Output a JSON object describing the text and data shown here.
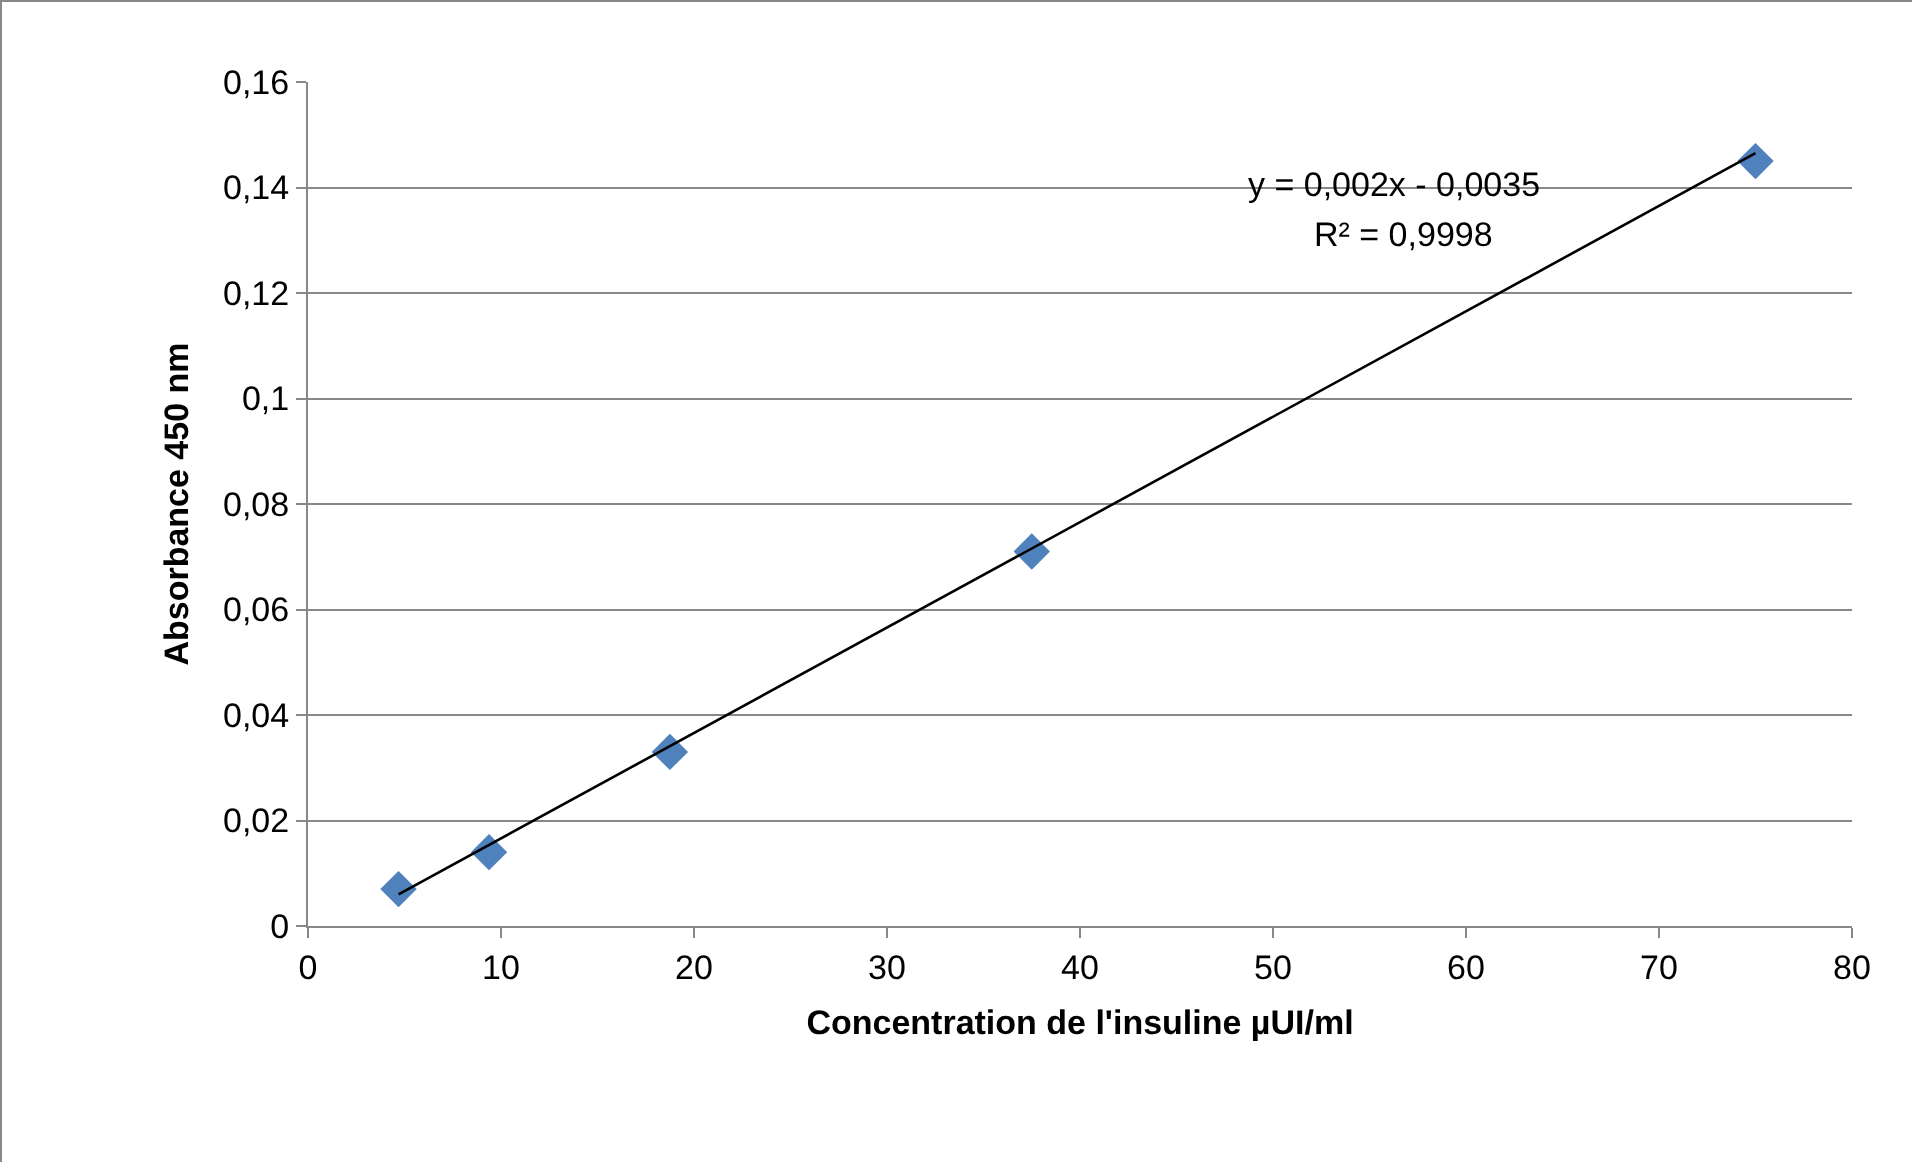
{
  "chart_data": {
    "type": "scatter",
    "xlabel": "Concentration de l'insuline µUI/ml",
    "ylabel": "Absorbance 450 nm",
    "series": [
      {
        "color": "#4f81bd",
        "marker": "diamond",
        "x": [
          4.69,
          9.38,
          18.75,
          37.5,
          75
        ],
        "values": [
          0.007,
          0.014,
          0.033,
          0.071,
          0.145
        ]
      },
      {
        "type": "line",
        "color": "#000000",
        "marker": "none",
        "x": [
          4.69,
          75
        ],
        "values": [
          0.006,
          0.1465
        ]
      }
    ],
    "annotations": [
      "y = 0,002x - 0,0035",
      "R² = 0,9998"
    ],
    "xlim": [
      0,
      80
    ],
    "xticks": [
      0,
      10,
      20,
      30,
      40,
      50,
      60,
      70,
      80
    ],
    "ylim": [
      0,
      0.16
    ],
    "yticks": [
      0,
      {
        "value": 0.02,
        "label": "0,02"
      },
      {
        "value": 0.04,
        "label": "0,04"
      },
      {
        "value": 0.06,
        "label": "0,06"
      },
      {
        "value": 0.08,
        "label": "0,08"
      },
      {
        "value": 0.1,
        "label": "0,1"
      },
      {
        "value": 0.12,
        "label": "0,12"
      },
      {
        "value": 0.14,
        "label": "0,14"
      },
      {
        "value": 0.16,
        "label": "0,16"
      }
    ],
    "grid": "y"
  }
}
